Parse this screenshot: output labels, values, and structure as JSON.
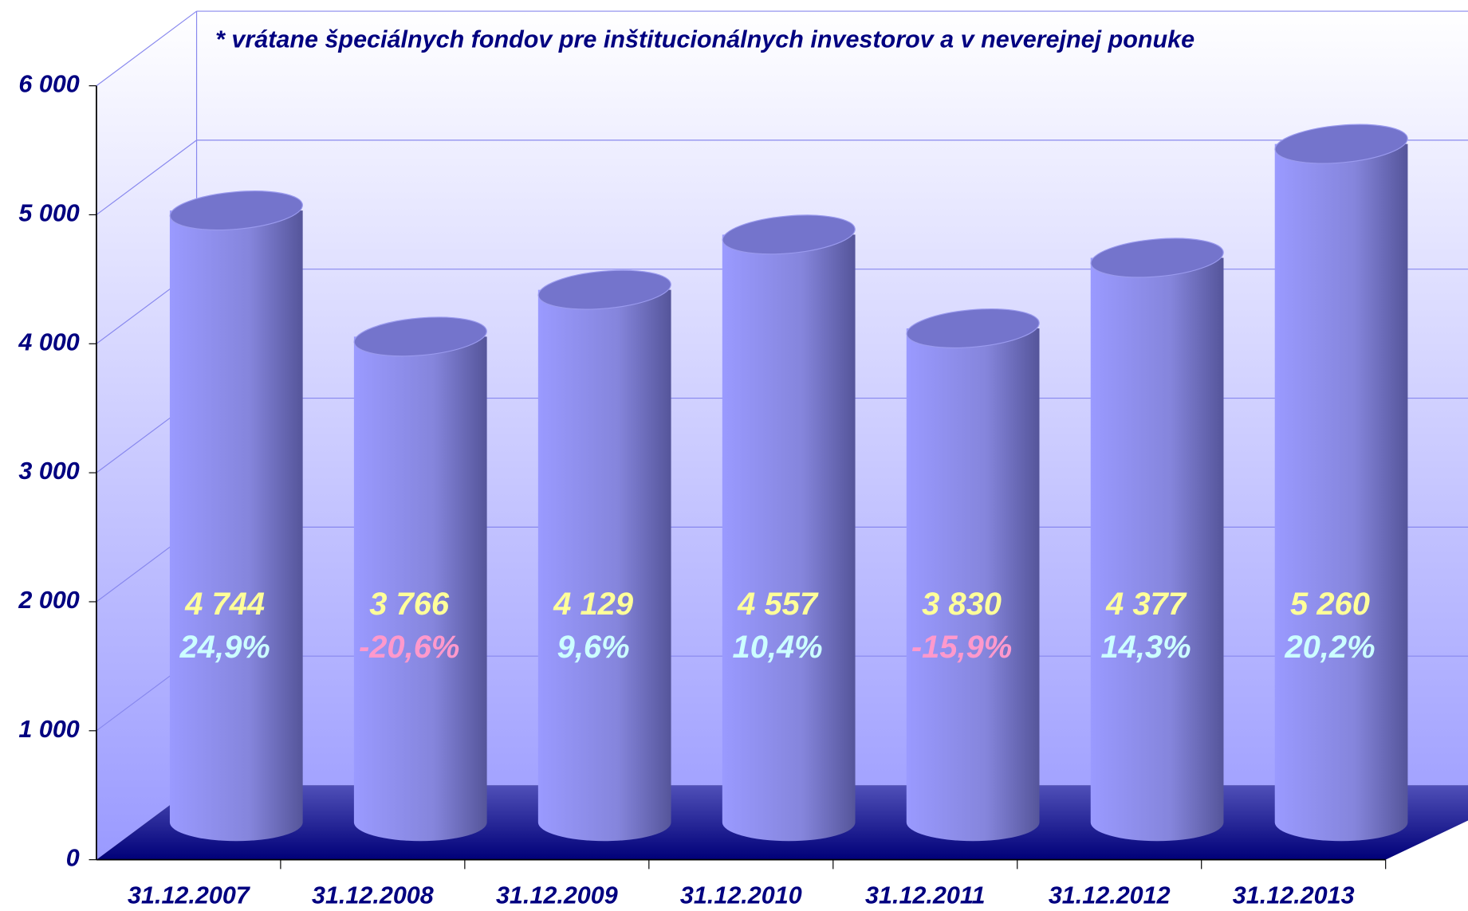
{
  "chart_data": {
    "type": "bar3d",
    "annotation": "* vrátane špeciálnych fondov pre inštitucionálnych investorov a v neverejnej ponuke",
    "categories": [
      "31.12.2007",
      "31.12.2008",
      "31.12.2009",
      "31.12.2010",
      "31.12.2011",
      "31.12.2012",
      "31.12.2013"
    ],
    "values": [
      4744,
      3766,
      4129,
      4557,
      3830,
      4377,
      5260
    ],
    "value_labels": [
      "4 744",
      "3 766",
      "4 129",
      "4 557",
      "3 830",
      "4 377",
      "5 260"
    ],
    "changes": [
      24.9,
      -20.6,
      9.6,
      10.4,
      -15.9,
      14.3,
      20.2
    ],
    "change_labels": [
      "24,9%",
      "-20,6%",
      "9,6%",
      "10,4%",
      "-15,9%",
      "14,3%",
      "20,2%"
    ],
    "color": "#9999ff",
    "value_label_color": "#ffff99",
    "positive_color": "#ccffff",
    "negative_color": "#ff99cc",
    "ylim": [
      0,
      6000
    ],
    "yticks": [
      0,
      {
        "value": 1000,
        "label": "1 000"
      },
      {
        "value": 2000,
        "label": "2 000"
      },
      {
        "value": 3000,
        "label": "3 000"
      },
      {
        "value": 4000,
        "label": "4 000"
      },
      {
        "value": 5000,
        "label": "5 000"
      },
      {
        "value": 6000,
        "label": "6 000"
      }
    ],
    "grid": true
  }
}
